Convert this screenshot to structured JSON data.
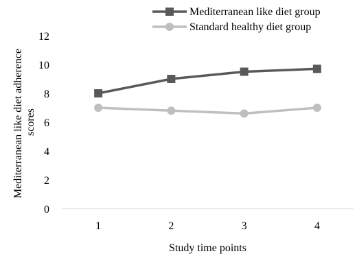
{
  "chart_data": {
    "type": "line",
    "categories": [
      "1",
      "2",
      "3",
      "4"
    ],
    "series": [
      {
        "name": "Mediterranean like diet group",
        "values": [
          8.0,
          9.0,
          9.5,
          9.7
        ],
        "color": "#595959",
        "marker": "square"
      },
      {
        "name": "Standard healthy diet group",
        "values": [
          7.0,
          6.8,
          6.6,
          7.0
        ],
        "color": "#bfbfbf",
        "marker": "circle"
      }
    ],
    "xlabel": "Study time points",
    "ylabel_lines": [
      "Mediterranean like diet adherence",
      "scores"
    ],
    "ylim": [
      0,
      12
    ],
    "yticks": [
      "0",
      "2",
      "4",
      "6",
      "8",
      "10",
      "12"
    ],
    "grid": false,
    "legend_position": "top-right"
  }
}
